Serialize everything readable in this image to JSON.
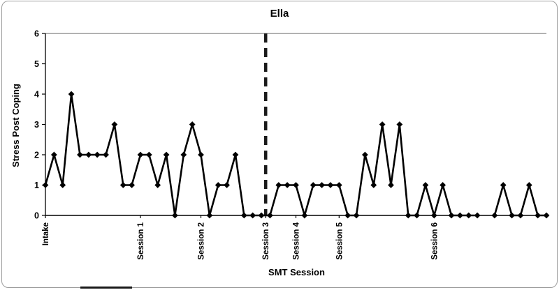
{
  "chart_data": {
    "type": "line",
    "title": "Ella",
    "xlabel": "SMT Session",
    "ylabel": "Stress Post Coping",
    "ylim": [
      0,
      6
    ],
    "yticks": [
      0,
      1,
      2,
      3,
      4,
      5,
      6
    ],
    "grid": false,
    "legend": "none",
    "series": [
      {
        "name": "Stress Post Coping",
        "values": [
          1,
          2,
          1,
          4,
          2,
          2,
          2,
          2,
          3,
          1,
          1,
          2,
          2,
          1,
          2,
          0,
          2,
          3,
          2,
          0,
          1,
          1,
          2,
          0,
          0,
          0,
          0,
          1,
          1,
          1,
          0,
          1,
          1,
          1,
          1,
          0,
          0,
          2,
          1,
          3,
          1,
          3,
          0,
          0,
          1,
          0,
          1,
          0,
          0,
          0,
          0,
          null,
          0,
          1,
          0,
          0,
          1,
          0,
          0
        ]
      }
    ],
    "x_ticks": [
      {
        "pos": 0,
        "label": "Intake"
      },
      {
        "pos": 11,
        "label": "Session 1"
      },
      {
        "pos": 18,
        "label": "Session 2"
      },
      {
        "pos": 25.5,
        "label": "Session 3"
      },
      {
        "pos": 29,
        "label": "Session 4"
      },
      {
        "pos": 34,
        "label": "Session 5"
      },
      {
        "pos": 45,
        "label": "Session 6"
      }
    ],
    "phase_change_line": {
      "pos": 25.5,
      "style": "dashed"
    },
    "colors": {
      "line": "#000000",
      "marker": "#000000",
      "phase_line": "#1a1a1a",
      "axis": "#000000",
      "plot_border": "#666666"
    }
  }
}
